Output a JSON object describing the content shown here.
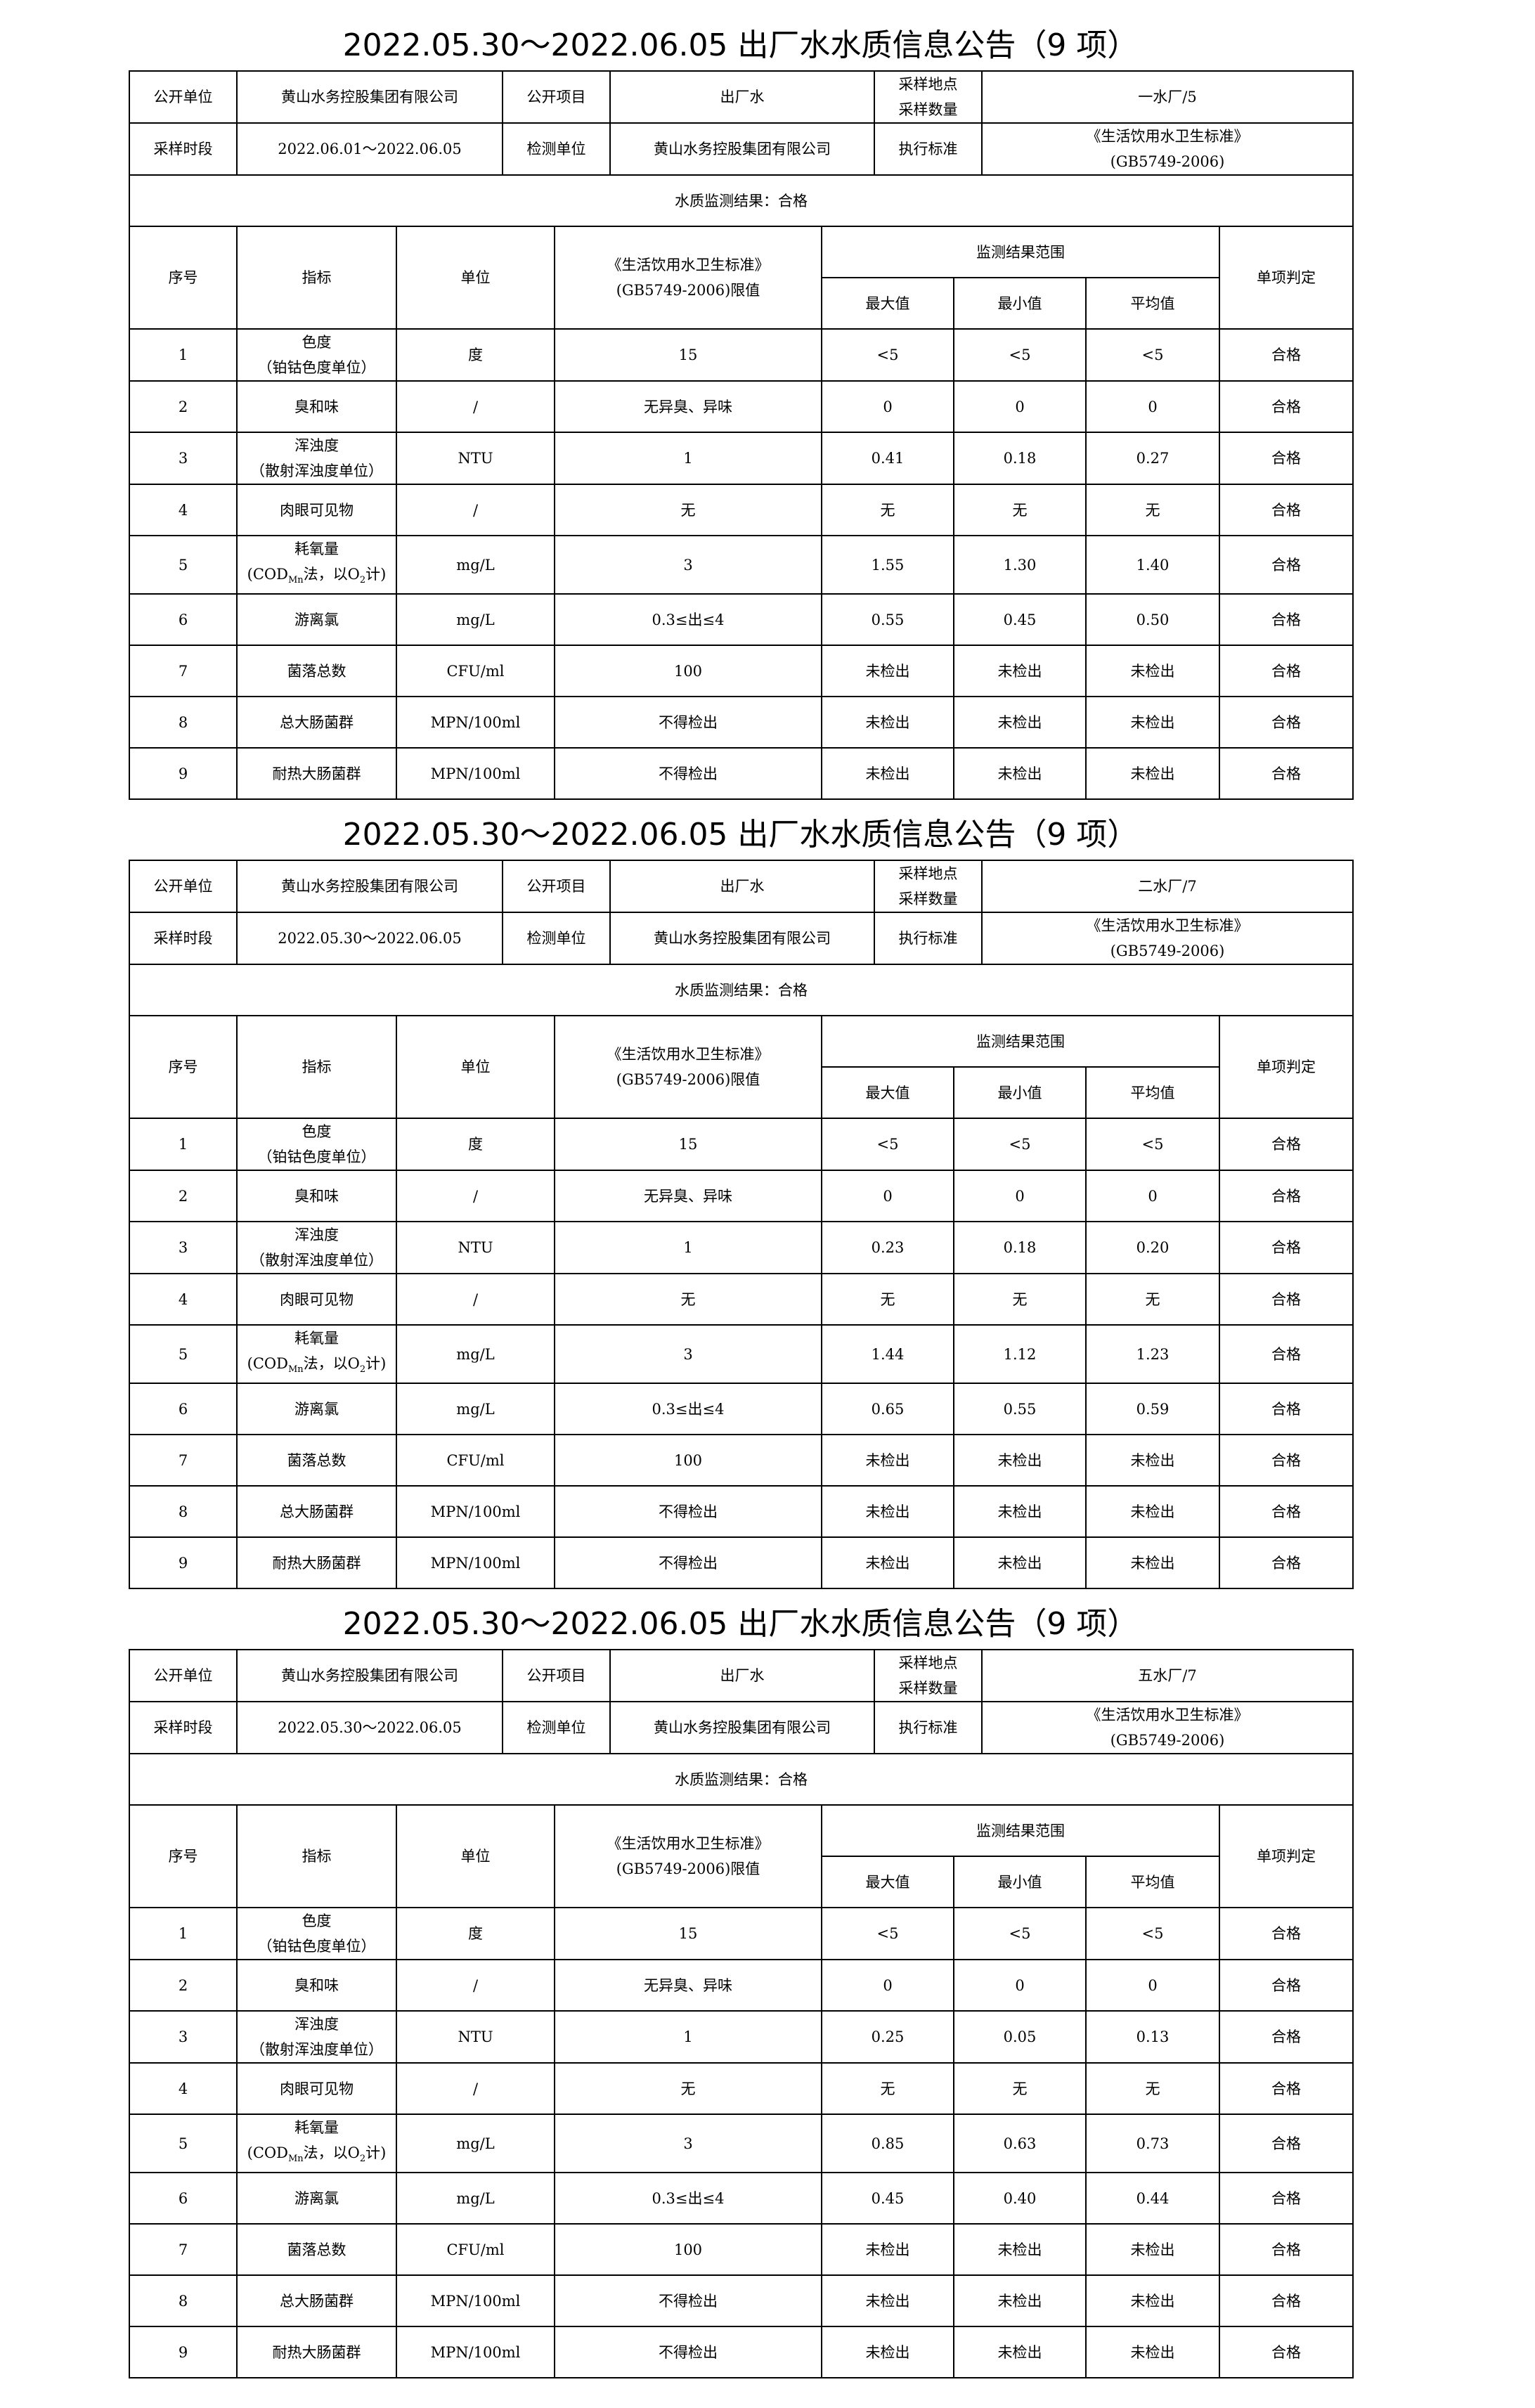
{
  "labels": {
    "publisher": "公开单位",
    "item": "公开项目",
    "sample_place_count": [
      "采样地点",
      "采样数量"
    ],
    "period": "采样时段",
    "lab": "检测单位",
    "standard": "执行标准",
    "col_no": "序号",
    "col_indicator": "指标",
    "col_unit": "单位",
    "col_limit": [
      "《生活饮用水卫生标准》",
      "(GB5749-2006)限值"
    ],
    "col_range": "监测结果范围",
    "col_max": "最大值",
    "col_min": "最小值",
    "col_avg": "平均值",
    "col_judge": "单项判定"
  },
  "indicators": [
    {
      "no": "1",
      "name": [
        "色度",
        "（铂钴色度单位）"
      ],
      "unit": "度",
      "limit": "15"
    },
    {
      "no": "2",
      "name": [
        "臭和味"
      ],
      "unit": "/",
      "limit": "无异臭、异味"
    },
    {
      "no": "3",
      "name": [
        "浑浊度",
        "（散射浑浊度单位）"
      ],
      "unit": "NTU",
      "limit": "1"
    },
    {
      "no": "4",
      "name": [
        "肉眼可见物"
      ],
      "unit": "/",
      "limit": "无"
    },
    {
      "no": "5",
      "name": [
        "耗氧量"
      ],
      "cod": [
        "(COD",
        "Mn",
        "法，以O",
        "2",
        "计)"
      ],
      "unit": "mg/L",
      "limit": "3"
    },
    {
      "no": "6",
      "name": [
        "游离氯"
      ],
      "unit": "mg/L",
      "limit": "0.3≤出≤4"
    },
    {
      "no": "7",
      "name": [
        "菌落总数"
      ],
      "unit": "CFU/ml",
      "limit": "100"
    },
    {
      "no": "8",
      "name": [
        "总大肠菌群"
      ],
      "unit": "MPN/100ml",
      "limit": "不得检出"
    },
    {
      "no": "9",
      "name": [
        "耐热大肠菌群"
      ],
      "unit": "MPN/100ml",
      "limit": "不得检出"
    }
  ],
  "blocks": [
    {
      "title": "2022.05.30～2022.06.05 出厂水水质信息公告（9 项）",
      "publisher": "黄山水务控股集团有限公司",
      "item": "出厂水",
      "place_count": "一水厂/5",
      "period": "2022.06.01～2022.06.05",
      "lab": "黄山水务控股集团有限公司",
      "standard": [
        "《生活饮用水卫生标准》",
        "(GB5749-2006)"
      ],
      "result": "水质监测结果：合格",
      "rows": [
        [
          "<5",
          "<5",
          "<5",
          "合格"
        ],
        [
          "0",
          "0",
          "0",
          "合格"
        ],
        [
          "0.41",
          "0.18",
          "0.27",
          "合格"
        ],
        [
          "无",
          "无",
          "无",
          "合格"
        ],
        [
          "1.55",
          "1.30",
          "1.40",
          "合格"
        ],
        [
          "0.55",
          "0.45",
          "0.50",
          "合格"
        ],
        [
          "未检出",
          "未检出",
          "未检出",
          "合格"
        ],
        [
          "未检出",
          "未检出",
          "未检出",
          "合格"
        ],
        [
          "未检出",
          "未检出",
          "未检出",
          "合格"
        ]
      ]
    },
    {
      "title": "2022.05.30～2022.06.05 出厂水水质信息公告（9 项）",
      "publisher": "黄山水务控股集团有限公司",
      "item": "出厂水",
      "place_count": "二水厂/7",
      "period": "2022.05.30～2022.06.05",
      "lab": "黄山水务控股集团有限公司",
      "standard": [
        "《生活饮用水卫生标准》",
        "(GB5749-2006)"
      ],
      "result": "水质监测结果：合格",
      "rows": [
        [
          "<5",
          "<5",
          "<5",
          "合格"
        ],
        [
          "0",
          "0",
          "0",
          "合格"
        ],
        [
          "0.23",
          "0.18",
          "0.20",
          "合格"
        ],
        [
          "无",
          "无",
          "无",
          "合格"
        ],
        [
          "1.44",
          "1.12",
          "1.23",
          "合格"
        ],
        [
          "0.65",
          "0.55",
          "0.59",
          "合格"
        ],
        [
          "未检出",
          "未检出",
          "未检出",
          "合格"
        ],
        [
          "未检出",
          "未检出",
          "未检出",
          "合格"
        ],
        [
          "未检出",
          "未检出",
          "未检出",
          "合格"
        ]
      ]
    },
    {
      "title": "2022.05.30～2022.06.05 出厂水水质信息公告（9 项）",
      "publisher": "黄山水务控股集团有限公司",
      "item": "出厂水",
      "place_count": "五水厂/7",
      "period": "2022.05.30～2022.06.05",
      "lab": "黄山水务控股集团有限公司",
      "standard": [
        "《生活饮用水卫生标准》",
        "(GB5749-2006)"
      ],
      "result": "水质监测结果：合格",
      "rows": [
        [
          "<5",
          "<5",
          "<5",
          "合格"
        ],
        [
          "0",
          "0",
          "0",
          "合格"
        ],
        [
          "0.25",
          "0.05",
          "0.13",
          "合格"
        ],
        [
          "无",
          "无",
          "无",
          "合格"
        ],
        [
          "0.85",
          "0.63",
          "0.73",
          "合格"
        ],
        [
          "0.45",
          "0.40",
          "0.44",
          "合格"
        ],
        [
          "未检出",
          "未检出",
          "未检出",
          "合格"
        ],
        [
          "未检出",
          "未检出",
          "未检出",
          "合格"
        ],
        [
          "未检出",
          "未检出",
          "未检出",
          "合格"
        ]
      ]
    }
  ]
}
